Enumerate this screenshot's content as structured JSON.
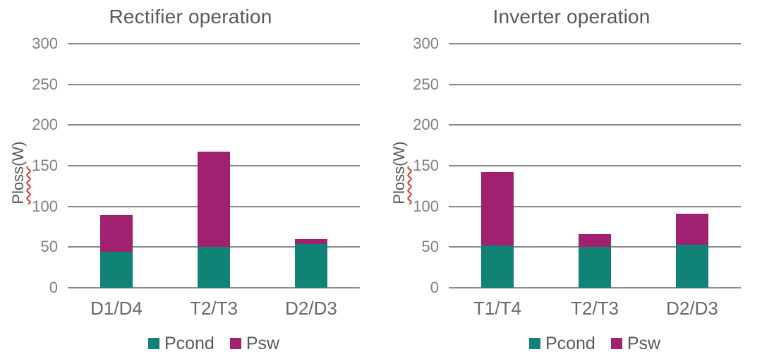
{
  "axis": {
    "ylabel_word": "Ploss",
    "ylabel_unit": "(W)"
  },
  "colors": {
    "pcond": "#108276",
    "psw": "#A02170",
    "grid": "#8A8A8A",
    "title_text": "#595959",
    "tick_text": "#808080",
    "xlabel_text": "#696969",
    "legend_text": "#595959",
    "spellcheck_squiggle": "#D23A2E",
    "background": "#FFFFFF"
  },
  "chart_data": [
    {
      "type": "bar",
      "stacked": true,
      "title": "Rectifier operation",
      "categories": [
        "D1/D4",
        "T2/T3",
        "D2/D3"
      ],
      "series": [
        {
          "name": "Pcond",
          "color": "#108276",
          "values": [
            44,
            50,
            54
          ]
        },
        {
          "name": "Psw",
          "color": "#A02170",
          "values": [
            45,
            117,
            6
          ]
        }
      ],
      "totals": [
        89,
        167,
        60
      ],
      "xlabel": "",
      "ylabel": "Ploss(W)",
      "ylim": [
        0,
        300
      ],
      "yticks": [
        0,
        50,
        100,
        150,
        200,
        250,
        300
      ],
      "grid": true,
      "legend_position": "bottom"
    },
    {
      "type": "bar",
      "stacked": true,
      "title": "Inverter operation",
      "categories": [
        "T1/T4",
        "T2/T3",
        "D2/D3"
      ],
      "series": [
        {
          "name": "Pcond",
          "color": "#108276",
          "values": [
            52,
            50,
            53
          ]
        },
        {
          "name": "Psw",
          "color": "#A02170",
          "values": [
            90,
            16,
            38
          ]
        }
      ],
      "totals": [
        142,
        66,
        91
      ],
      "xlabel": "",
      "ylabel": "Ploss(W)",
      "ylim": [
        0,
        300
      ],
      "yticks": [
        0,
        50,
        100,
        150,
        200,
        250,
        300
      ],
      "grid": true,
      "legend_position": "bottom"
    }
  ]
}
